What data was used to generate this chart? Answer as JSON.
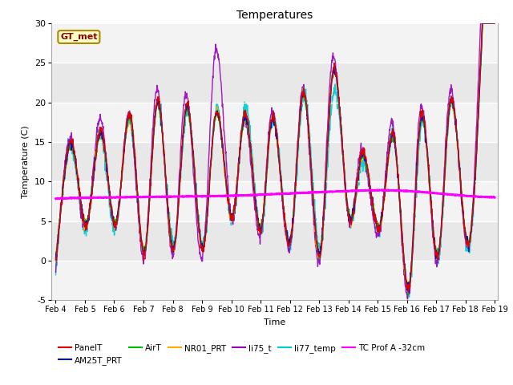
{
  "title": "Temperatures",
  "xlabel": "Time",
  "ylabel": "Temperature (C)",
  "ylim": [
    -5,
    30
  ],
  "yticks": [
    -5,
    0,
    5,
    10,
    15,
    20,
    25,
    30
  ],
  "x_start": 4,
  "x_end": 19,
  "xtick_labels": [
    "Feb 4",
    "Feb 5",
    "Feb 6",
    "Feb 7",
    "Feb 8",
    "Feb 9",
    "Feb 10",
    "Feb 11",
    "Feb 12",
    "Feb 13",
    "Feb 14",
    "Feb 15",
    "Feb 16",
    "Feb 17",
    "Feb 18",
    "Feb 19"
  ],
  "xtick_positions": [
    4,
    5,
    6,
    7,
    8,
    9,
    10,
    11,
    12,
    13,
    14,
    15,
    16,
    17,
    18,
    19
  ],
  "legend_entries": [
    "PanelT",
    "AM25T_PRT",
    "AirT",
    "NR01_PRT",
    "li75_t",
    "li77_temp",
    "TC Prof A -32cm"
  ],
  "legend_colors": [
    "#dd0000",
    "#0000cc",
    "#00bb00",
    "#ffaa00",
    "#9900bb",
    "#00cccc",
    "#ff00ff"
  ],
  "annotation_text": "GT_met",
  "bg_color": "#e8e8e8",
  "alt_bg_color": "#f0f0f0",
  "grid_color": "#ffffff",
  "n_points": 1440
}
